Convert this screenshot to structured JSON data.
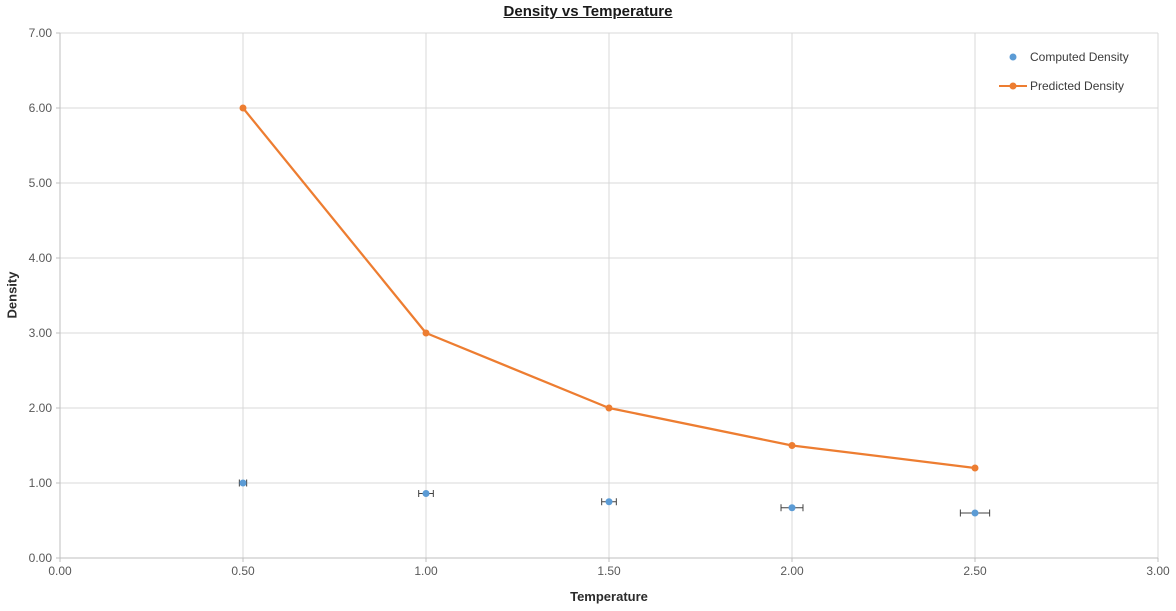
{
  "chart_data": {
    "type": "scatter",
    "title": "Density vs Temperature",
    "xlabel": "Temperature",
    "ylabel": "Density",
    "xlim": [
      0.0,
      3.0
    ],
    "ylim": [
      0.0,
      7.0
    ],
    "x_ticks": [
      "0.00",
      "0.50",
      "1.00",
      "1.50",
      "2.00",
      "2.50",
      "3.00"
    ],
    "y_ticks": [
      "0.00",
      "1.00",
      "2.00",
      "3.00",
      "4.00",
      "5.00",
      "6.00",
      "7.00"
    ],
    "grid": true,
    "legend_position": "inside-top-right",
    "x": [
      0.5,
      1.0,
      1.5,
      2.0,
      2.5
    ],
    "series": [
      {
        "name": "Computed Density",
        "type": "scatter",
        "marker": "circle",
        "color": "#5B9BD5",
        "values": [
          1.0,
          0.86,
          0.75,
          0.67,
          0.6
        ],
        "x_error": [
          0.01,
          0.02,
          0.02,
          0.03,
          0.04
        ]
      },
      {
        "name": "Predicted Density",
        "type": "line-with-markers",
        "marker": "circle",
        "color": "#ED7D31",
        "values": [
          6.0,
          3.0,
          2.0,
          1.5,
          1.2
        ]
      }
    ]
  },
  "colors": {
    "computed_series": "#5B9BD5",
    "predicted_series": "#ED7D31",
    "gridline": "#D9D9D9",
    "axis_line": "#BFBFBF",
    "tick_label": "#595959",
    "error_bar": "#404040",
    "background": "#FFFFFF"
  }
}
